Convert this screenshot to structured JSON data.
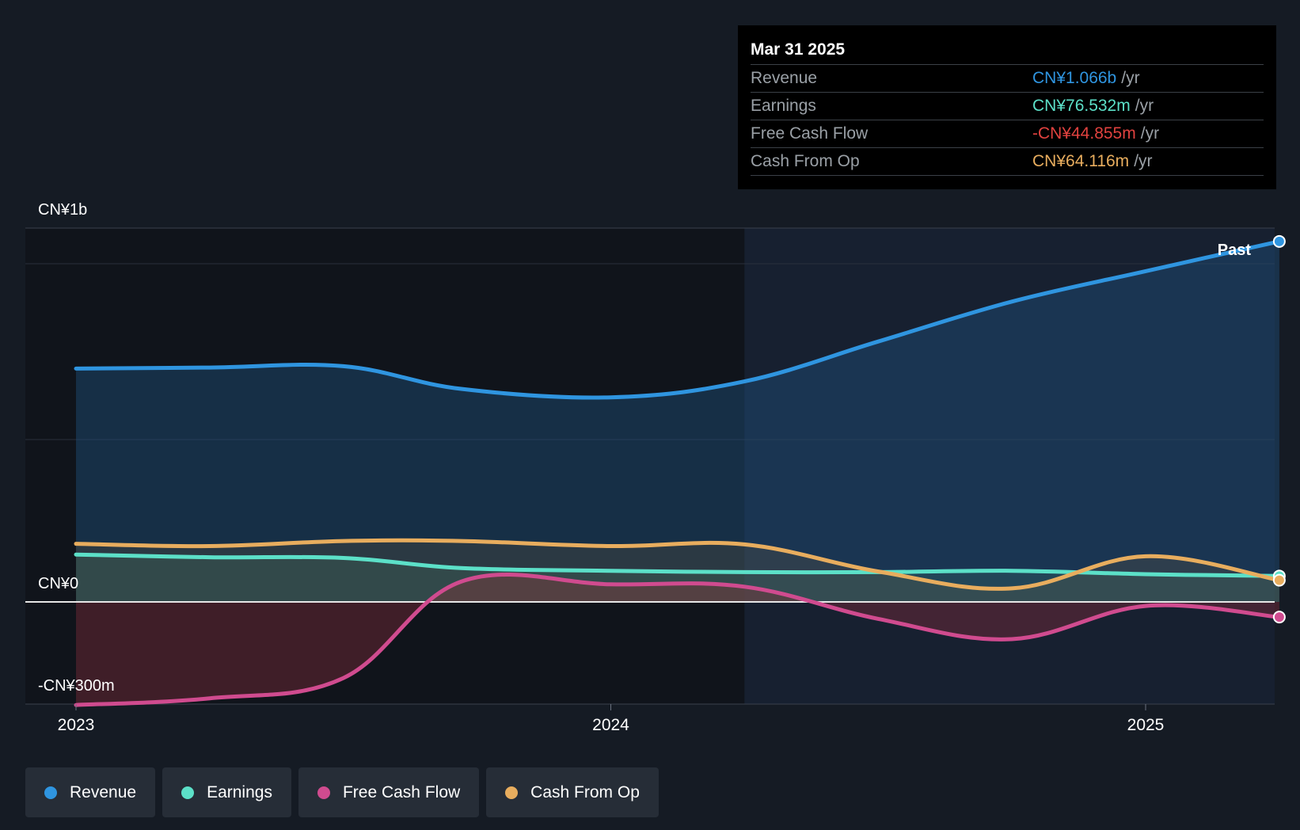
{
  "chart_data": {
    "type": "area",
    "x_ticks": [
      "2023",
      "2024",
      "2025"
    ],
    "y_ticks": [
      "CN¥1b",
      "CN¥0",
      "-CN¥300m"
    ],
    "marker_label": "Past",
    "series": [
      {
        "name": "Revenue",
        "color": "#2f95e0",
        "points": [
          [
            2023.0,
            690
          ],
          [
            2023.25,
            693
          ],
          [
            2023.5,
            697
          ],
          [
            2023.72,
            630
          ],
          [
            2024.0,
            605
          ],
          [
            2024.25,
            652
          ],
          [
            2024.5,
            770
          ],
          [
            2024.75,
            888
          ],
          [
            2025.0,
            978
          ],
          [
            2025.25,
            1066
          ]
        ]
      },
      {
        "name": "Earnings",
        "color": "#5ce0c8",
        "points": [
          [
            2023.0,
            140
          ],
          [
            2023.25,
            132
          ],
          [
            2023.5,
            130
          ],
          [
            2023.72,
            100
          ],
          [
            2024.0,
            92
          ],
          [
            2024.25,
            88
          ],
          [
            2024.5,
            88
          ],
          [
            2024.75,
            92
          ],
          [
            2025.0,
            82
          ],
          [
            2025.25,
            76.532
          ]
        ]
      },
      {
        "name": "Free Cash Flow",
        "color": "#d04b8f",
        "points": [
          [
            2023.0,
            -305
          ],
          [
            2023.25,
            -285
          ],
          [
            2023.5,
            -225
          ],
          [
            2023.72,
            60
          ],
          [
            2024.0,
            52
          ],
          [
            2024.25,
            45
          ],
          [
            2024.5,
            -50
          ],
          [
            2024.75,
            -110
          ],
          [
            2025.0,
            -12
          ],
          [
            2025.25,
            -44.855
          ]
        ]
      },
      {
        "name": "Cash From Op",
        "color": "#e8ad5e",
        "points": [
          [
            2023.0,
            172
          ],
          [
            2023.25,
            165
          ],
          [
            2023.5,
            180
          ],
          [
            2023.72,
            180
          ],
          [
            2024.0,
            165
          ],
          [
            2024.25,
            170
          ],
          [
            2024.5,
            90
          ],
          [
            2024.75,
            40
          ],
          [
            2025.0,
            135
          ],
          [
            2025.25,
            64.116
          ]
        ]
      }
    ],
    "ylim": [
      -360,
      1370
    ],
    "xlim": [
      2022.9,
      2025.25
    ],
    "forecast_boundary": 2024.25
  },
  "tooltip": {
    "date": "Mar 31 2025",
    "unit": "/yr",
    "rows": [
      {
        "label": "Revenue",
        "value": "CN¥1.066b",
        "color": "#2f95e0"
      },
      {
        "label": "Earnings",
        "value": "CN¥76.532m",
        "color": "#5ce0c8"
      },
      {
        "label": "Free Cash Flow",
        "value": "-CN¥44.855m",
        "color": "#e0423f"
      },
      {
        "label": "Cash From Op",
        "value": "CN¥64.116m",
        "color": "#e8ad5e"
      }
    ]
  },
  "legend": [
    {
      "label": "Revenue",
      "color": "#2f95e0"
    },
    {
      "label": "Earnings",
      "color": "#5ce0c8"
    },
    {
      "label": "Free Cash Flow",
      "color": "#d04b8f"
    },
    {
      "label": "Cash From Op",
      "color": "#e8ad5e"
    }
  ]
}
